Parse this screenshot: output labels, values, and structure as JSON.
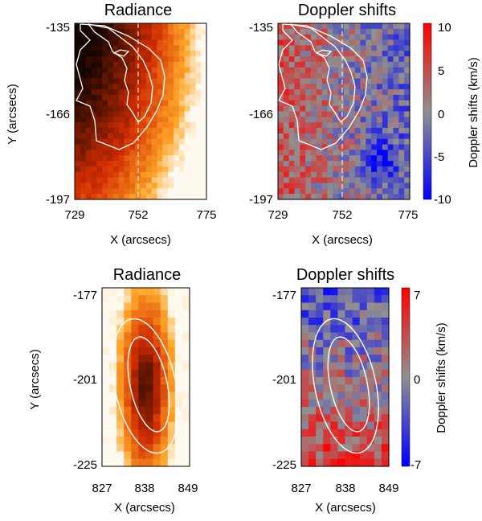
{
  "figure": {
    "panels": [
      {
        "id": "top-left",
        "title": "Radiance",
        "kind": "radiance",
        "xlabel": "X (arcsecs)",
        "ylabel": "Y (arcsecs)",
        "xticks": [
          "729",
          "752",
          "775"
        ],
        "yticks": [
          "-135",
          "-166",
          "-197"
        ]
      },
      {
        "id": "top-right",
        "title": "Doppler shifts",
        "kind": "doppler",
        "xlabel": "X (arcsecs)",
        "ylabel": "",
        "xticks": [
          "729",
          "752",
          "775"
        ],
        "yticks": [
          "-135",
          "-166",
          "-197"
        ],
        "colorbar": {
          "label": "Doppler shifts (km/s)",
          "ticks": [
            "10",
            "5",
            "0",
            "-5",
            "-10"
          ]
        }
      },
      {
        "id": "bottom-left",
        "title": "Radiance",
        "kind": "radiance",
        "xlabel": "X (arcsecs)",
        "ylabel": "Y (arcsecs)",
        "xticks": [
          "827",
          "838",
          "849"
        ],
        "yticks": [
          "-177",
          "-201",
          "-225"
        ]
      },
      {
        "id": "bottom-right",
        "title": "Doppler shifts",
        "kind": "doppler",
        "xlabel": "X (arcsecs)",
        "ylabel": "",
        "xticks": [
          "827",
          "838",
          "849"
        ],
        "yticks": [
          "-177",
          "-201",
          "-225"
        ],
        "colorbar": {
          "label": "Doppler shifts (km/s)",
          "ticks": [
            "7",
            "0",
            "-7"
          ]
        }
      }
    ]
  },
  "chart_data": [
    {
      "type": "heatmap",
      "title": "Radiance",
      "xlabel": "X (arcsecs)",
      "ylabel": "Y (arcsecs)",
      "xlim": [
        729,
        775
      ],
      "ylim": [
        -197,
        -135
      ],
      "xticks": [
        729,
        752,
        775
      ],
      "yticks": [
        -135,
        -166,
        -197
      ],
      "contours": "white",
      "reference_line_x": 752
    },
    {
      "type": "heatmap",
      "title": "Doppler shifts",
      "xlabel": "X (arcsecs)",
      "xlim": [
        729,
        775
      ],
      "ylim": [
        -197,
        -135
      ],
      "xticks": [
        729,
        752,
        775
      ],
      "yticks": [
        -135,
        -166,
        -197
      ],
      "colorbar": {
        "label": "Doppler shifts (km/s)",
        "range": [
          -10,
          10
        ],
        "ticks": [
          10,
          5,
          0,
          -5,
          -10
        ]
      },
      "reference_line_x": 752
    },
    {
      "type": "heatmap",
      "title": "Radiance",
      "xlabel": "X (arcsecs)",
      "ylabel": "Y (arcsecs)",
      "xlim": [
        827,
        849
      ],
      "ylim": [
        -225,
        -177
      ],
      "xticks": [
        827,
        838,
        849
      ],
      "yticks": [
        -177,
        -201,
        -225
      ],
      "contours": "white"
    },
    {
      "type": "heatmap",
      "title": "Doppler shifts",
      "xlabel": "X (arcsecs)",
      "xlim": [
        827,
        849
      ],
      "ylim": [
        -225,
        -177
      ],
      "xticks": [
        827,
        838,
        849
      ],
      "yticks": [
        -177,
        -201,
        -225
      ],
      "colorbar": {
        "label": "Doppler shifts (km/s)",
        "range": [
          -7,
          7
        ],
        "ticks": [
          7,
          0,
          -7
        ]
      }
    }
  ]
}
